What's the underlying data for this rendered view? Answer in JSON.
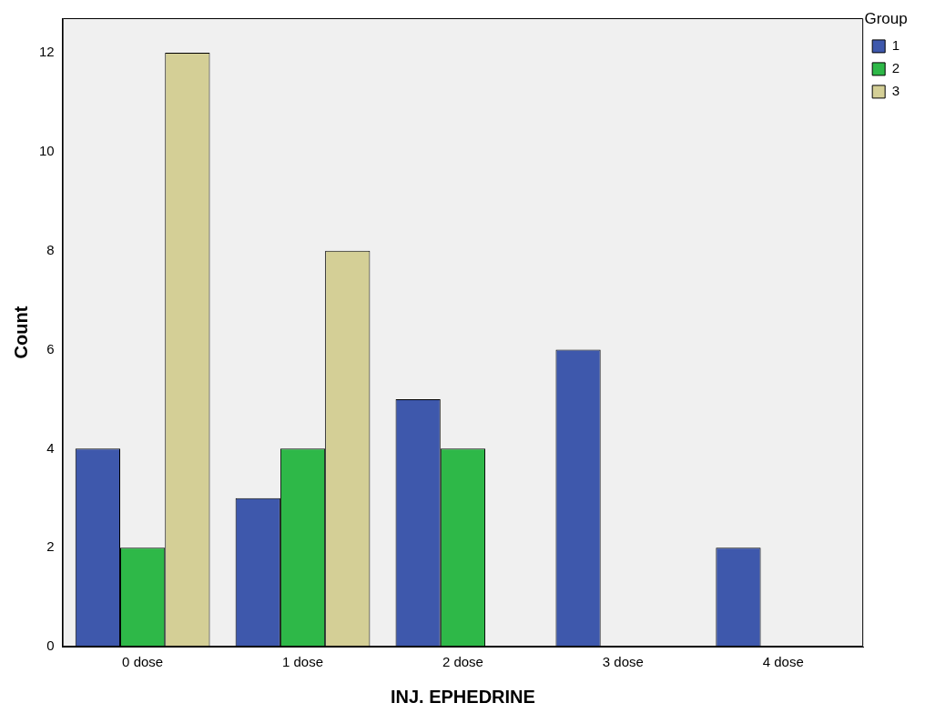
{
  "chart_data": {
    "type": "bar",
    "xlabel": "INJ. EPHEDRINE",
    "ylabel": "Count",
    "legend_title": "Group",
    "categories": [
      "0 dose",
      "1 dose",
      "2 dose",
      "3 dose",
      "4 dose"
    ],
    "series": [
      {
        "name": "1",
        "color": "#3e58ac",
        "values": [
          4,
          3,
          5,
          6,
          2
        ]
      },
      {
        "name": "2",
        "color": "#2eb848",
        "values": [
          2,
          4,
          4,
          null,
          null
        ]
      },
      {
        "name": "3",
        "color": "#d4cf96",
        "values": [
          12,
          8,
          null,
          null,
          null
        ]
      }
    ],
    "ylim": [
      0,
      12.7
    ],
    "yticks": [
      0,
      2,
      4,
      6,
      8,
      10,
      12
    ],
    "grid": false,
    "legend": "top right"
  }
}
